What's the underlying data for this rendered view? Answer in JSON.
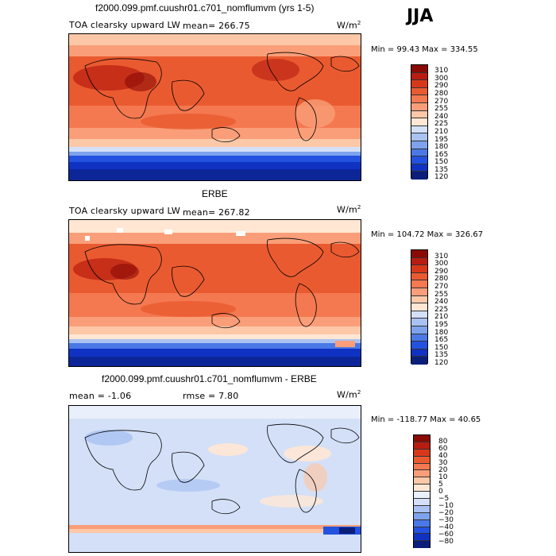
{
  "season": "JJA",
  "colors": {
    "abs": [
      "#0a1e7a",
      "#0f32c3",
      "#2352e0",
      "#4a78e6",
      "#7ea3ec",
      "#a9c2f2",
      "#d3e0f7",
      "#ffe7d4",
      "#fcc8a8",
      "#f99e78",
      "#f47850",
      "#ea5a30",
      "#d8381a",
      "#b81c10",
      "#8a0a05"
    ],
    "diff": [
      "#0a1e7a",
      "#0f32c3",
      "#2352e0",
      "#4a78e6",
      "#7ea3ec",
      "#a9c2f2",
      "#d3e0f7",
      "#e9f0fb",
      "#ffe7d4",
      "#fcc8a8",
      "#f99e78",
      "#f47850",
      "#ea5a30",
      "#d8381a",
      "#b81c10",
      "#8a0a05"
    ]
  },
  "panels": [
    {
      "title": "f2000.099.pmf.cuushr01.c701_nomflumvm (yrs 1-5)",
      "variable": "TOA clearsky upward LW",
      "stat": "mean= 266.75",
      "units": "W/m",
      "units_exp": "2",
      "minmax": "Min =  99.43 Max = 334.55",
      "levels": [
        "310",
        "300",
        "290",
        "280",
        "270",
        "255",
        "240",
        "225",
        "210",
        "195",
        "180",
        "165",
        "150",
        "135",
        "120"
      ]
    },
    {
      "title": "ERBE",
      "variable": "TOA clearsky upward LW",
      "stat": "mean= 267.82",
      "units": "W/m",
      "units_exp": "2",
      "minmax": "Min = 104.72 Max = 326.67",
      "levels": [
        "310",
        "300",
        "290",
        "280",
        "270",
        "255",
        "240",
        "225",
        "210",
        "195",
        "180",
        "165",
        "150",
        "135",
        "120"
      ]
    },
    {
      "title": "f2000.099.pmf.cuushr01.c701_nomflumvm - ERBE",
      "stat": "mean =   -1.06",
      "stat2": "rmse =    7.80",
      "units": "W/m",
      "units_exp": "2",
      "minmax": "Min = -118.77 Max =  40.65",
      "levels": [
        "80",
        "60",
        "40",
        "30",
        "20",
        "10",
        "5",
        "0",
        "−5",
        "−10",
        "−20",
        "−30",
        "−40",
        "−60",
        "−80"
      ]
    }
  ]
}
